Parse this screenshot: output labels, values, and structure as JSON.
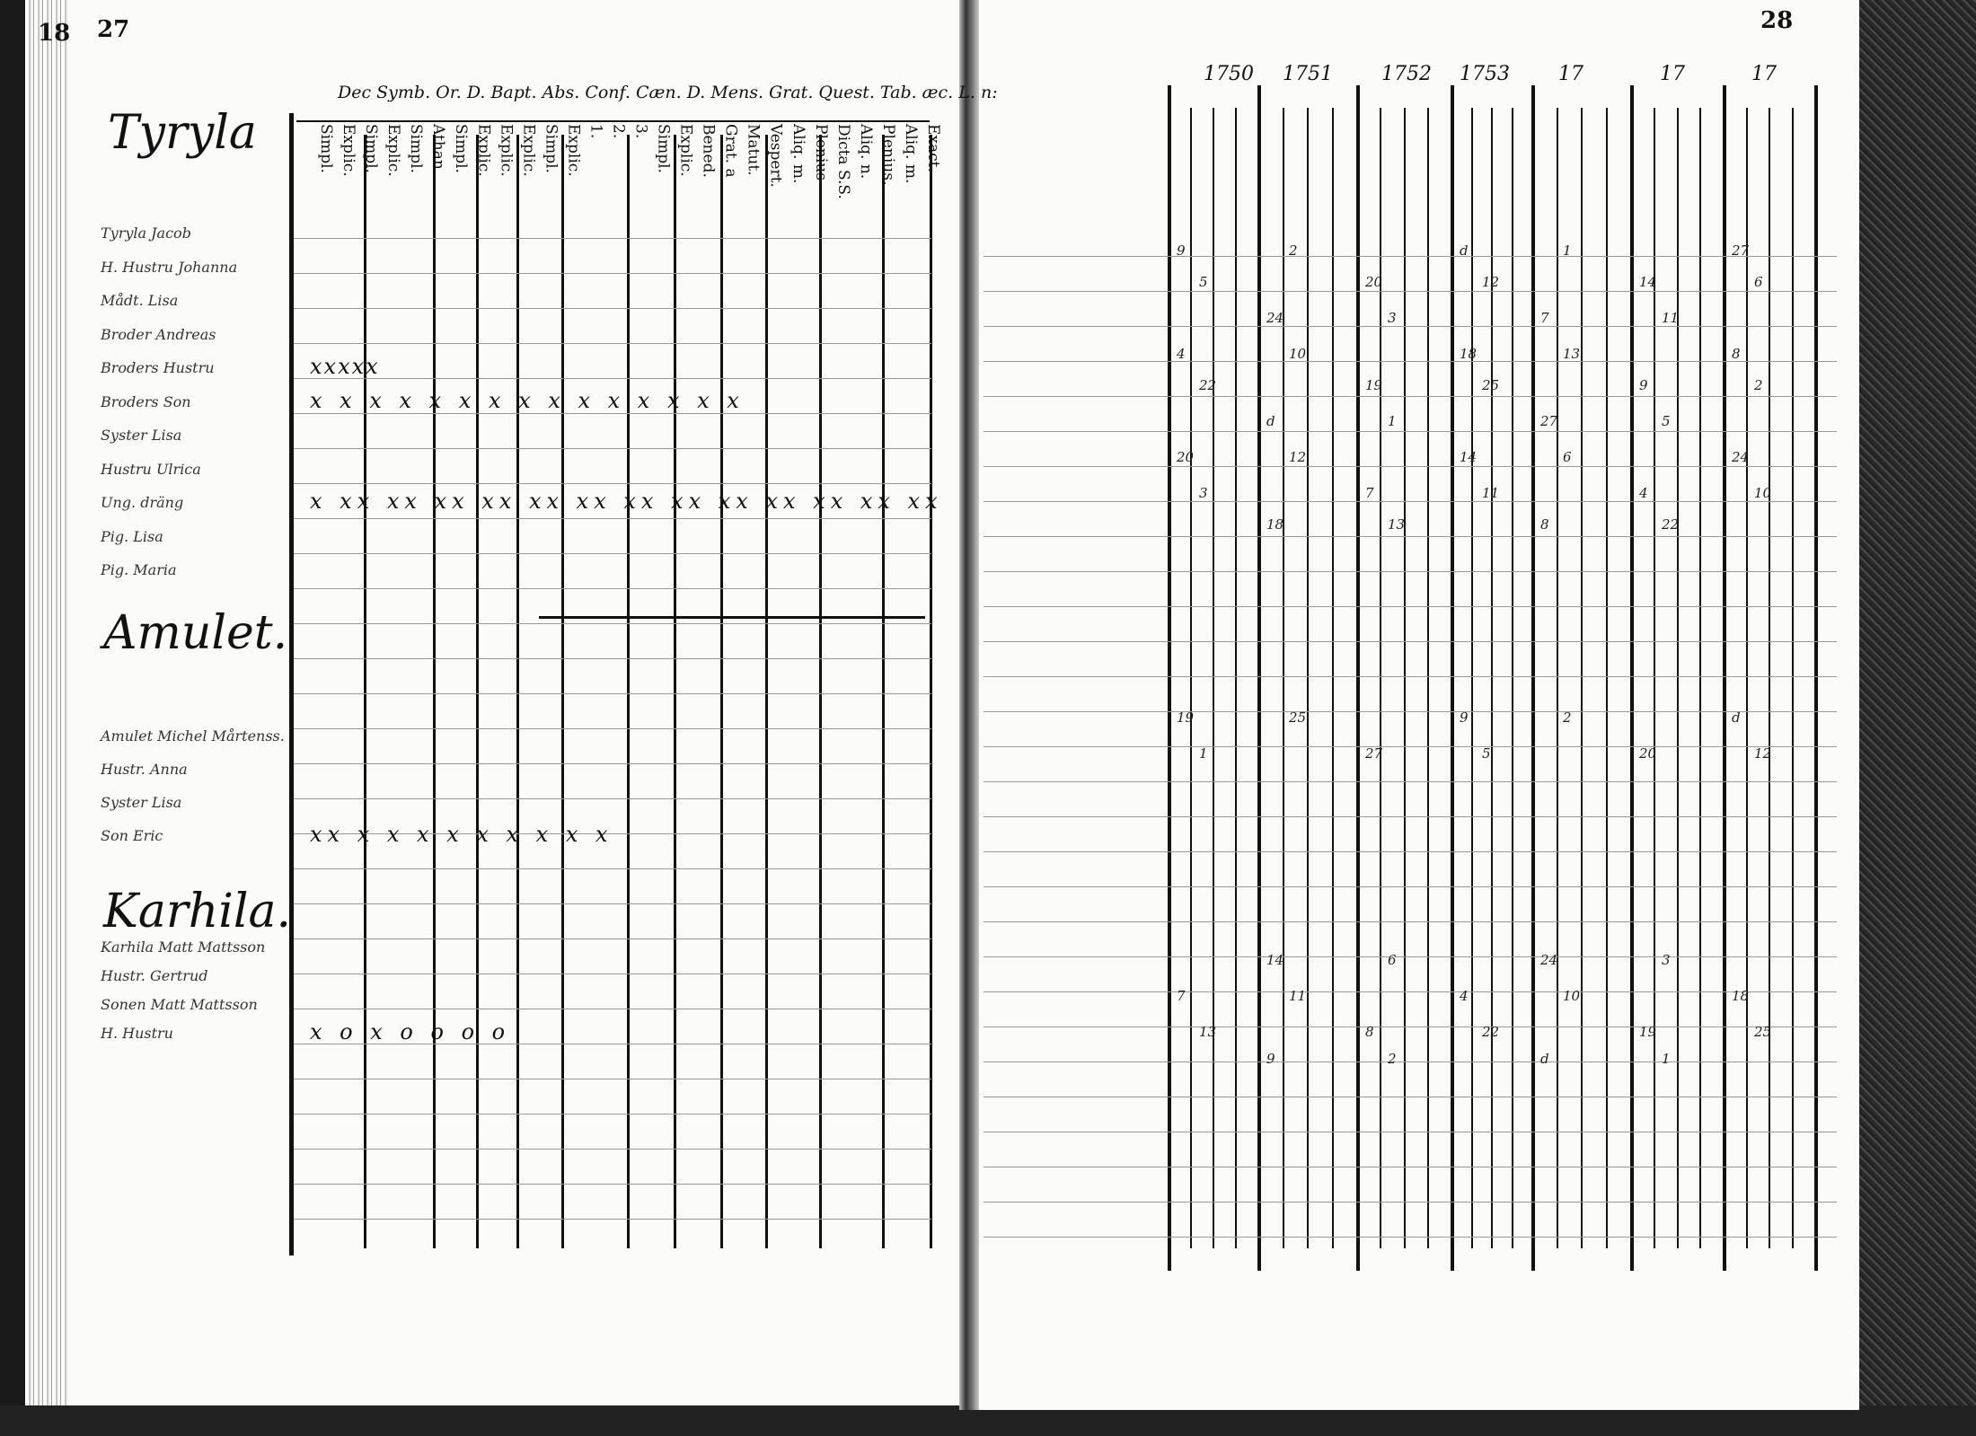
{
  "left_page": {
    "edge_number": "18",
    "page_number": "27",
    "header_line": "Dec  Symb. Or. D. Bapt. Abs. Conf. Cæn. D. Mens. Grat. Quest. Tab. æc. L. n:",
    "column_headers": [
      "Simpl.",
      "Explic.",
      "Simpl.",
      "Explic.",
      "Simpl.",
      "Athan.",
      "Simpl.",
      "Explic.",
      "Explic.",
      "Explic.",
      "Simpl.",
      "Explic.",
      "1.",
      "2.",
      "3.",
      "Simpl.",
      "Explic.",
      "Bened.",
      "Grat. a",
      "Matut.",
      "Vespert.",
      "Aliq. m.",
      "Plenius",
      "Dicta S.S.",
      "Aliq. n.",
      "Plenius,",
      "Aliq. m.",
      "Exact."
    ],
    "sections": [
      {
        "heading": "Tyryla",
        "names": [
          "Tyryla Jacob",
          "H. Hustru Johanna",
          "Mådt. Lisa",
          "Broder Andreas",
          "Broders Hustru",
          "Broders Son",
          "Syster Lisa",
          "Hustru Ulrica",
          "Ung. dräng",
          "Pig. Lisa",
          "Pig. Maria"
        ]
      },
      {
        "heading": "Amulet.",
        "names": [
          "Amulet Michel Mårtenss.",
          "Hustr. Anna",
          "Syster Lisa",
          "Son Eric"
        ]
      },
      {
        "heading": "Karhila.",
        "names": [
          "Karhila Matt Mattsson",
          "Hustr. Gertrud",
          "Sonen Matt Mattsson",
          "H. Hustru"
        ]
      }
    ],
    "marks": [
      {
        "row": "Broders Hustru",
        "text": "xxxxx"
      },
      {
        "row": "Broders Son",
        "text": "x x x x x x x x x x x x x x x"
      },
      {
        "row": "Ung. dräng",
        "text": "x xx xx xx xx xx xx xx xx xx xx xx xx xx"
      },
      {
        "row": "Son Eric",
        "text": "xx x x x x x x x x x"
      },
      {
        "row": "H. Hustru",
        "text": "x o x o o o o"
      }
    ]
  },
  "right_page": {
    "page_number": "28",
    "years": [
      "1750",
      "1751",
      "1752",
      "1753",
      "17",
      "17",
      "17"
    ],
    "cell_values": [
      "9",
      "2",
      "d",
      "1",
      "27",
      "5",
      "20",
      "12",
      "14",
      "6",
      "24",
      "3",
      "7",
      "11",
      "4",
      "10",
      "18",
      "13",
      "8",
      "22",
      "19",
      "25"
    ]
  }
}
